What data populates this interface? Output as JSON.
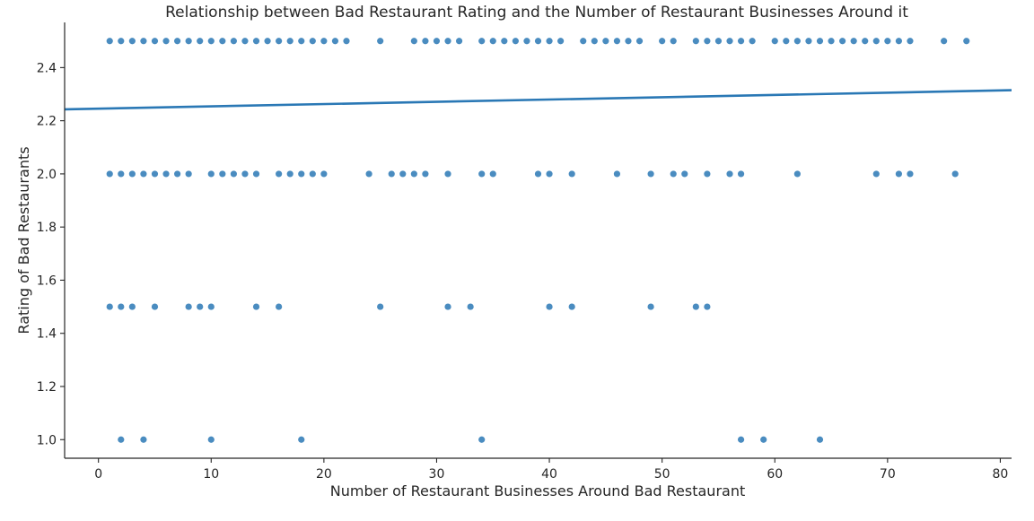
{
  "chart_data": {
    "type": "scatter",
    "title": "Relationship between Bad Restaurant Rating and the Number of Restaurant Businesses Around it",
    "xlabel": "Number of Restaurant Businesses Around Bad Restaurant",
    "ylabel": "Rating of Bad Restaurants",
    "xlim": [
      -3,
      81
    ],
    "ylim": [
      0.93,
      2.57
    ],
    "xticks": [
      0,
      10,
      20,
      30,
      40,
      50,
      60,
      70,
      80
    ],
    "yticks": [
      1.0,
      1.2,
      1.4,
      1.6,
      1.8,
      2.0,
      2.2,
      2.4
    ],
    "xtick_labels": [
      "0",
      "10",
      "20",
      "30",
      "40",
      "50",
      "60",
      "70",
      "80"
    ],
    "ytick_labels": [
      "1.0",
      "1.2",
      "1.4",
      "1.6",
      "1.8",
      "2.0",
      "2.2",
      "2.4"
    ],
    "grid": false,
    "point_color": "#2a78b5",
    "line_color": "#2a78b5",
    "points": [
      {
        "y": 2.5,
        "x": [
          1,
          2,
          3,
          4,
          5,
          6,
          7,
          8,
          9,
          10,
          11,
          12,
          13,
          14,
          15,
          16,
          17,
          18,
          19,
          20,
          21,
          22,
          25,
          28,
          29,
          30,
          31,
          32,
          34,
          35,
          36,
          37,
          38,
          39,
          40,
          41,
          43,
          44,
          45,
          46,
          47,
          48,
          50,
          51,
          53,
          54,
          55,
          56,
          57,
          58,
          60,
          61,
          62,
          63,
          64,
          65,
          66,
          67,
          68,
          69,
          70,
          71,
          72,
          75,
          77
        ]
      },
      {
        "y": 2.0,
        "x": [
          1,
          2,
          3,
          4,
          5,
          6,
          7,
          8,
          10,
          11,
          12,
          13,
          14,
          16,
          17,
          18,
          19,
          20,
          24,
          26,
          27,
          28,
          29,
          31,
          34,
          35,
          39,
          40,
          42,
          46,
          49,
          51,
          52,
          54,
          56,
          57,
          62,
          69,
          71,
          72,
          76
        ]
      },
      {
        "y": 1.5,
        "x": [
          1,
          2,
          3,
          5,
          8,
          9,
          10,
          14,
          16,
          25,
          31,
          33,
          40,
          42,
          49,
          53,
          54
        ]
      },
      {
        "y": 1.0,
        "x": [
          2,
          4,
          10,
          18,
          34,
          57,
          59,
          64
        ]
      }
    ],
    "regression_line": {
      "x": [
        -3,
        81
      ],
      "y": [
        2.243,
        2.315
      ]
    }
  }
}
